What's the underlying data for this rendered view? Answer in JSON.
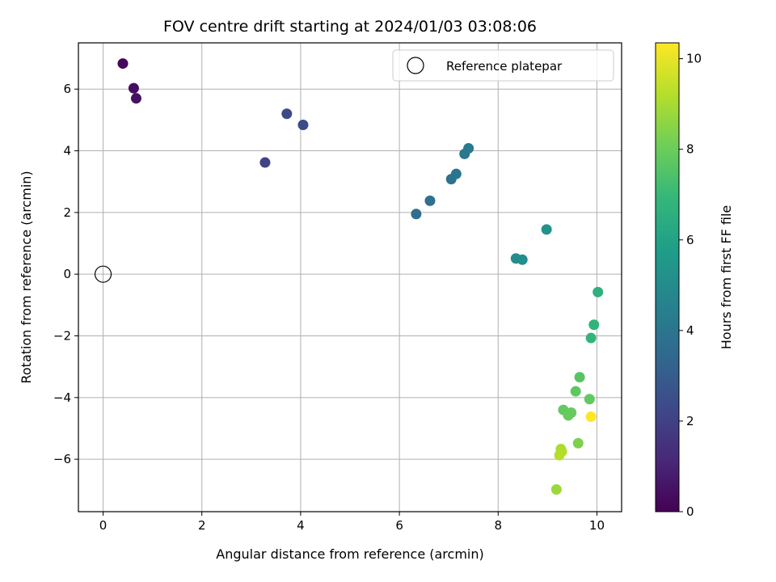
{
  "chart_data": {
    "type": "scatter",
    "title": "FOV centre drift starting at 2024/01/03 03:08:06",
    "xlabel": "Angular distance from reference (arcmin)",
    "ylabel": "Rotation from reference (arcmin)",
    "xlim": [
      -0.5,
      10.5
    ],
    "ylim": [
      -7.7,
      7.5
    ],
    "xticks": [
      0,
      2,
      4,
      6,
      8,
      10
    ],
    "yticks": [
      -6,
      -4,
      -2,
      0,
      2,
      4,
      6
    ],
    "grid": true,
    "legend": {
      "position": "top-right",
      "entries": [
        "Reference platepar"
      ]
    },
    "reference_point": {
      "x": 0,
      "y": 0,
      "label": "Reference platepar",
      "marker": "hollow-circle"
    },
    "colorbar": {
      "label": "Hours from first FF file",
      "colormap": "viridis",
      "range": [
        0,
        10.35
      ],
      "ticks": [
        0,
        2,
        4,
        6,
        8,
        10
      ]
    },
    "series": [
      {
        "values": [
          {
            "x": 0.4,
            "y": 6.83,
            "hours": 0.2
          },
          {
            "x": 0.62,
            "y": 6.03,
            "hours": 0.4
          },
          {
            "x": 0.67,
            "y": 5.7,
            "hours": 0.5
          },
          {
            "x": 3.28,
            "y": 3.62,
            "hours": 2.1
          },
          {
            "x": 3.72,
            "y": 5.2,
            "hours": 2.3
          },
          {
            "x": 4.05,
            "y": 4.84,
            "hours": 2.4
          },
          {
            "x": 6.34,
            "y": 1.95,
            "hours": 3.7
          },
          {
            "x": 6.62,
            "y": 2.38,
            "hours": 3.8
          },
          {
            "x": 7.05,
            "y": 3.08,
            "hours": 3.9
          },
          {
            "x": 7.15,
            "y": 3.25,
            "hours": 4.0
          },
          {
            "x": 7.32,
            "y": 3.9,
            "hours": 4.1
          },
          {
            "x": 7.4,
            "y": 4.08,
            "hours": 4.2
          },
          {
            "x": 8.36,
            "y": 0.51,
            "hours": 5.0
          },
          {
            "x": 8.49,
            "y": 0.47,
            "hours": 5.1
          },
          {
            "x": 8.98,
            "y": 1.45,
            "hours": 5.3
          },
          {
            "x": 10.02,
            "y": -0.58,
            "hours": 6.6
          },
          {
            "x": 9.94,
            "y": -1.64,
            "hours": 6.7
          },
          {
            "x": 9.88,
            "y": -2.07,
            "hours": 6.8
          },
          {
            "x": 9.65,
            "y": -3.34,
            "hours": 7.6
          },
          {
            "x": 9.57,
            "y": -3.8,
            "hours": 7.7
          },
          {
            "x": 9.85,
            "y": -4.05,
            "hours": 7.8
          },
          {
            "x": 9.32,
            "y": -4.4,
            "hours": 7.8
          },
          {
            "x": 9.42,
            "y": -4.58,
            "hours": 7.9
          },
          {
            "x": 9.48,
            "y": -4.49,
            "hours": 7.9
          },
          {
            "x": 9.62,
            "y": -5.48,
            "hours": 8.3
          },
          {
            "x": 9.27,
            "y": -5.67,
            "hours": 9.0
          },
          {
            "x": 9.29,
            "y": -5.75,
            "hours": 9.1
          },
          {
            "x": 9.24,
            "y": -5.87,
            "hours": 9.2
          },
          {
            "x": 9.18,
            "y": -6.98,
            "hours": 8.8
          },
          {
            "x": 9.88,
            "y": -4.62,
            "hours": 10.3
          }
        ]
      }
    ]
  }
}
